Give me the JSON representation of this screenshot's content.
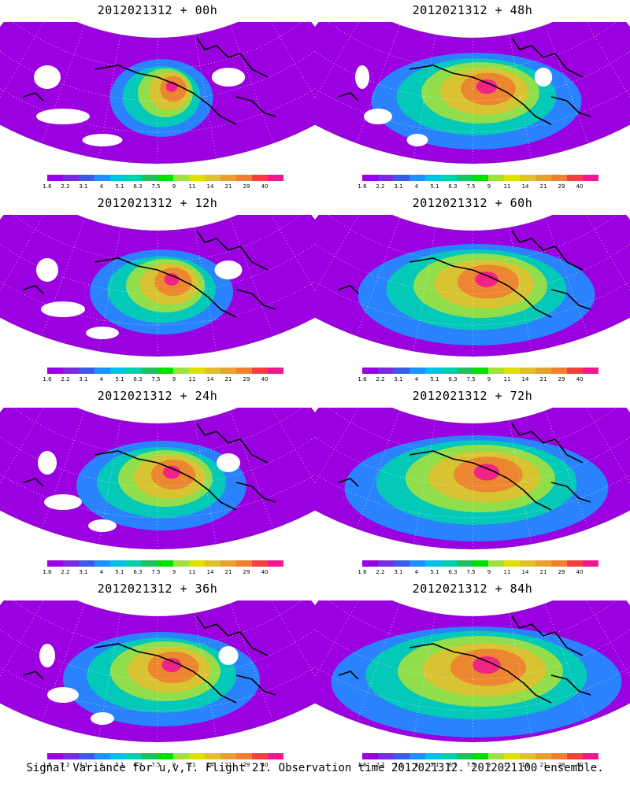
{
  "footer_caption": "Signal Variance for u,v,T. Flight 21. Observation time 2012021312. 2012021100 ensemble.",
  "colorbar": {
    "colors": [
      "#9b00e0",
      "#7a2be0",
      "#3c5ae8",
      "#1e90ff",
      "#00c0e8",
      "#00d0b0",
      "#20c060",
      "#00e000",
      "#a0e040",
      "#e0e000",
      "#e0c030",
      "#e8a030",
      "#f08030",
      "#f04040",
      "#f01890"
    ],
    "tick_labels": [
      "1.6",
      "2.2",
      "3.1",
      "4",
      "5.1",
      "6.3",
      "7.5",
      "9",
      "11",
      "14",
      "21",
      "29",
      "40"
    ]
  },
  "panels": [
    {
      "title": "2012021312 + 00h",
      "lead_hours": 0,
      "intensity": 0.15
    },
    {
      "title": "2012021312 + 48h",
      "lead_hours": 48,
      "intensity": 0.55
    },
    {
      "title": "2012021312 + 12h",
      "lead_hours": 12,
      "intensity": 0.3
    },
    {
      "title": "2012021312 + 60h",
      "lead_hours": 60,
      "intensity": 0.65
    },
    {
      "title": "2012021312 + 24h",
      "lead_hours": 24,
      "intensity": 0.4
    },
    {
      "title": "2012021312 + 72h",
      "lead_hours": 72,
      "intensity": 0.75
    },
    {
      "title": "2012021312 + 36h",
      "lead_hours": 36,
      "intensity": 0.5
    },
    {
      "title": "2012021312 + 84h",
      "lead_hours": 84,
      "intensity": 0.85
    }
  ]
}
